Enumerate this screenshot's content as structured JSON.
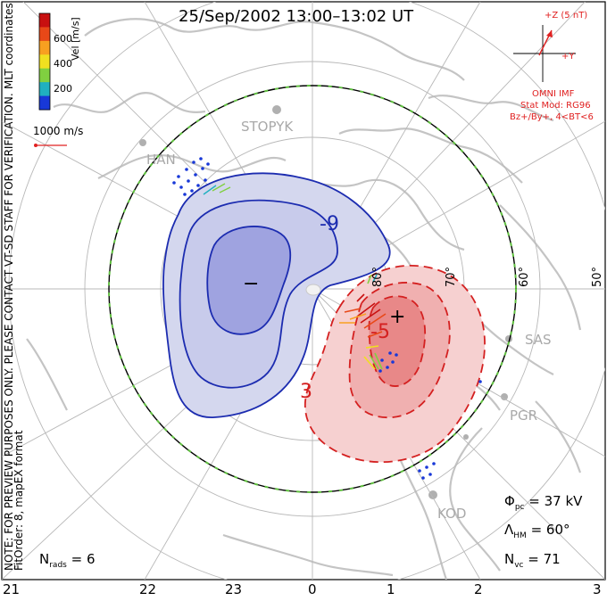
{
  "title": "25/Sep/2002 13:00–13:02 UT",
  "colorbar": {
    "label": "Vel [m/s]",
    "ticks": [
      "600",
      "400",
      "200"
    ],
    "colors": [
      "#c81010",
      "#e84818",
      "#f8a020",
      "#f0e020",
      "#80d040",
      "#20b0c0",
      "#1838d8"
    ]
  },
  "coord_label": "MLT coordinates",
  "scale_vector_label": "1000 m/s",
  "side_notes": [
    "NOTE: FOR PREVIEW PURPOSES ONLY. PLEASE CONTACT VT-SD STAFF FOR VERIFICATION.",
    "FitOrder: 8, mapEX format"
  ],
  "imf": {
    "z_label": "+Z (5 nT)",
    "y_label": "+Y",
    "lines": [
      "OMNI IMF",
      "Stat Mod: RG96",
      "Bz+/By+, 4<BT<6"
    ]
  },
  "stations": [
    "STOPYK",
    "HAN",
    "SAS",
    "PGR",
    "KOD"
  ],
  "latitude_labels": [
    "80°",
    "70°",
    "60°",
    "50°"
  ],
  "contour_labels": [
    "-9",
    "-5",
    "3"
  ],
  "cell_markers": [
    "−",
    "+"
  ],
  "mlt_ticks": [
    "21",
    "22",
    "23",
    "0",
    "1",
    "2",
    "3"
  ],
  "stats": {
    "phi_pc": "= 37 kV",
    "lambda_hm": "= 60°",
    "n_vc": "= 71",
    "n_rads": "= 6"
  },
  "stat_symbols": {
    "phi": "Φ",
    "phi_sub": "pc",
    "lambda": "Λ",
    "lambda_sub": "HM",
    "n": "N",
    "nvc_sub": "vc",
    "nrads_sub": "rads"
  },
  "colors": {
    "negative_cell": "#1c2cb0",
    "positive_cell": "#d42020",
    "coastline": "#c8c8c8",
    "heppner_maynard": "#60c040"
  }
}
